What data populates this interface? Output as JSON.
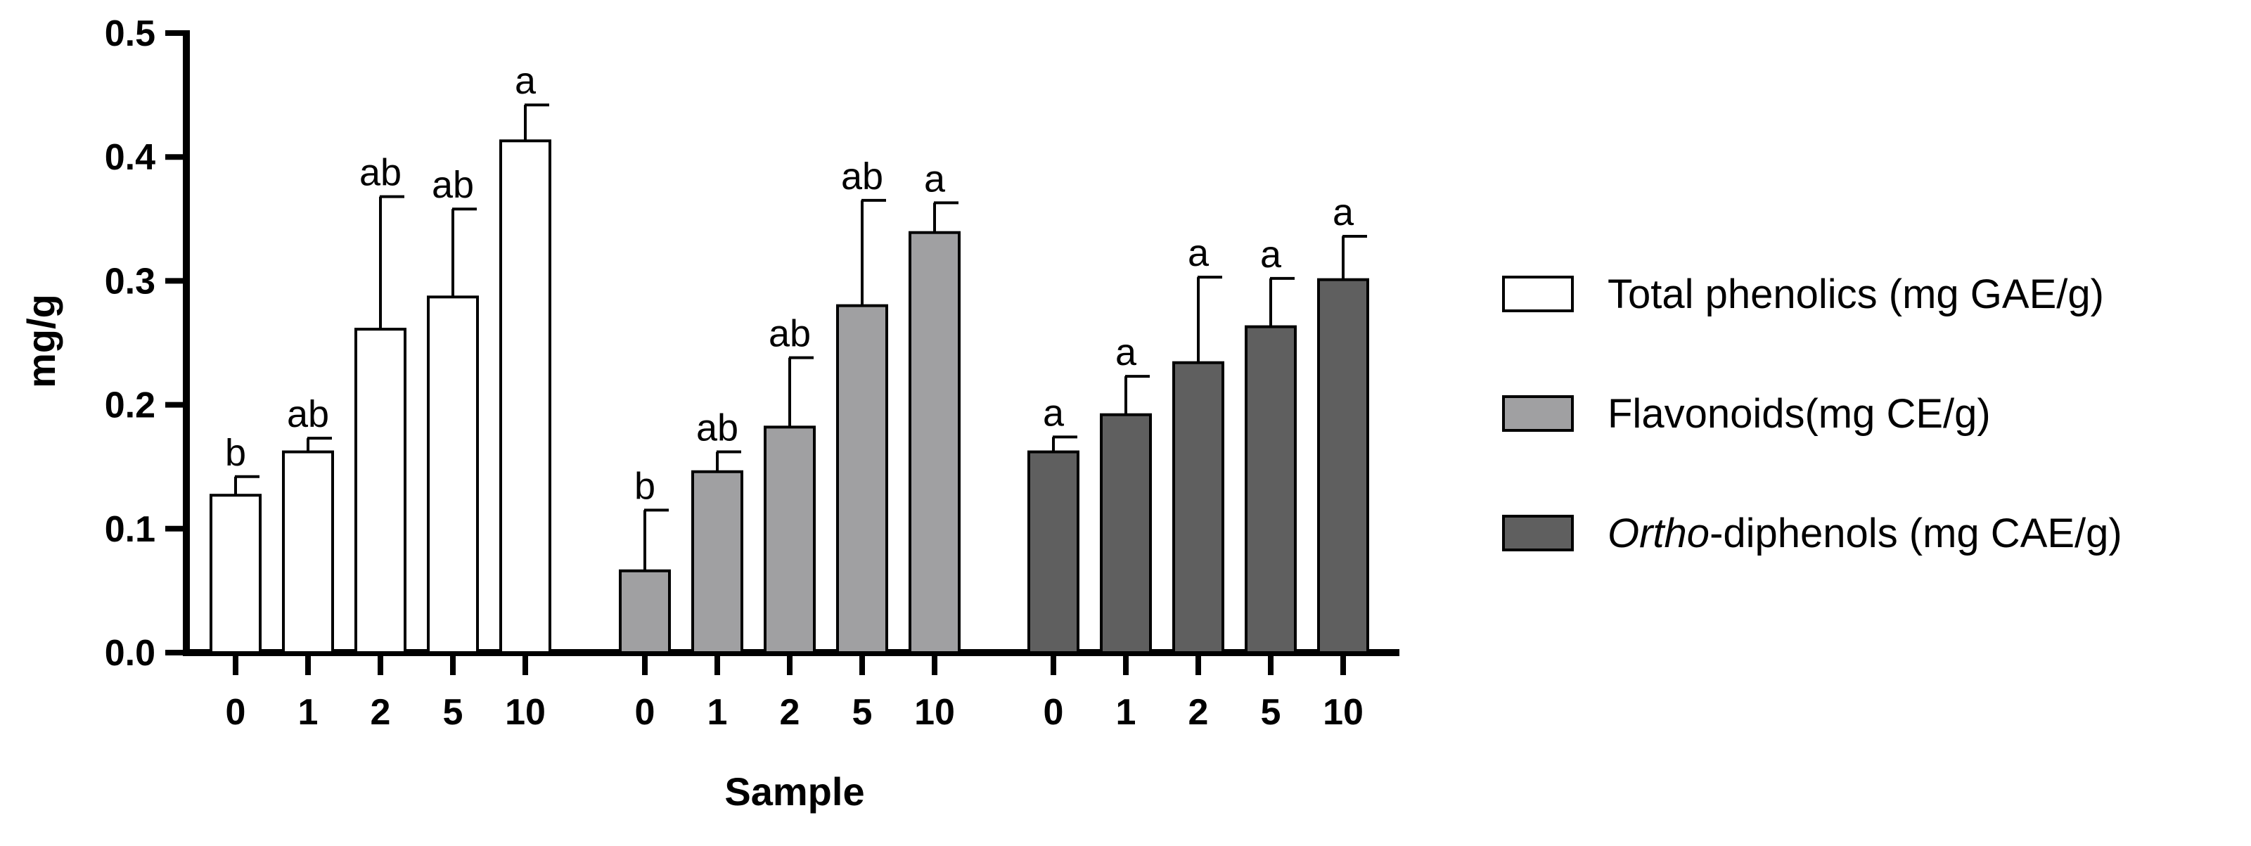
{
  "chart_data": {
    "type": "bar",
    "xlabel": "Sample",
    "ylabel": "mg/g",
    "ylim": [
      0,
      0.5
    ],
    "yticks": [
      "0.0",
      "0.1",
      "0.2",
      "0.3",
      "0.4",
      "0.5"
    ],
    "grid": false,
    "legend_position": "right",
    "categories": [
      "0",
      "1",
      "2",
      "5",
      "10"
    ],
    "series": [
      {
        "name": "Total phenolics (mg GAE/g)",
        "name_parts": [
          {
            "text": "Total phenolics (mg GAE/g)",
            "italic": false
          }
        ],
        "color": "#ffffff",
        "values": [
          0.127,
          0.162,
          0.261,
          0.287,
          0.413
        ],
        "errors": [
          0.015,
          0.011,
          0.107,
          0.071,
          0.029
        ],
        "labels": [
          "b",
          "ab",
          "ab",
          "ab",
          "a"
        ]
      },
      {
        "name": "Flavonoids(mg CE/g)",
        "name_parts": [
          {
            "text": "Flavonoids(mg CE/g)",
            "italic": false
          }
        ],
        "color": "#a0a0a2",
        "values": [
          0.066,
          0.146,
          0.182,
          0.28,
          0.339
        ],
        "errors": [
          0.049,
          0.016,
          0.056,
          0.085,
          0.024
        ],
        "labels": [
          "b",
          "ab",
          "ab",
          "ab",
          "a"
        ]
      },
      {
        "name": "Ortho-diphenols (mg CAE/g)",
        "name_parts": [
          {
            "text": "Ortho",
            "italic": true
          },
          {
            "text": "-diphenols (mg CAE/g)",
            "italic": false
          }
        ],
        "color": "#5f5f5f",
        "values": [
          0.162,
          0.192,
          0.234,
          0.263,
          0.301
        ],
        "errors": [
          0.012,
          0.031,
          0.069,
          0.039,
          0.035
        ],
        "labels": [
          "a",
          "a",
          "a",
          "a",
          "a"
        ]
      }
    ]
  }
}
